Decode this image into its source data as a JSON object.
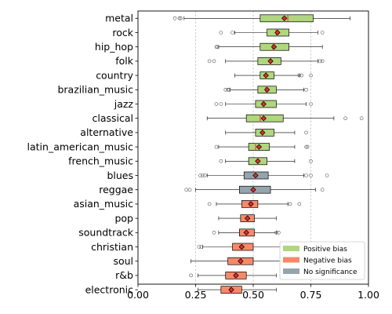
{
  "chart_data": {
    "type": "boxplot",
    "orientation": "horizontal",
    "title": "",
    "xlabel": "",
    "ylabel": "",
    "xlim": [
      0,
      1
    ],
    "x_ticks": [
      "0.00",
      "0.25",
      "0.50",
      "0.75",
      "1.00"
    ],
    "x_tick_values": [
      0,
      0.25,
      0.5,
      0.75,
      1.0
    ],
    "reference_lines": [
      0.25,
      0.5,
      0.75
    ],
    "grid": false,
    "legend_position": "lower-right",
    "colors": {
      "positive": "#b0d67e",
      "negative": "#f58a6a",
      "none": "#95a5ad",
      "median": "#e8453c",
      "mean_marker": "#d93030"
    },
    "legend": [
      {
        "label": "Positive bias",
        "group": "positive"
      },
      {
        "label": "Negative bias",
        "group": "negative"
      },
      {
        "label": "No significance",
        "group": "none"
      }
    ],
    "categories": [
      {
        "label": "metal",
        "group": "positive",
        "whisker_low": 0.2,
        "q1": 0.53,
        "median": 0.65,
        "q3": 0.76,
        "whisker_high": 0.92,
        "mean": 0.635,
        "outliers": [
          0.16,
          0.18,
          0.185
        ]
      },
      {
        "label": "rock",
        "group": "positive",
        "whisker_low": 0.42,
        "q1": 0.56,
        "median": 0.6,
        "q3": 0.655,
        "whisker_high": 0.78,
        "mean": 0.605,
        "outliers": [
          0.36,
          0.41,
          0.8
        ]
      },
      {
        "label": "hip_hop",
        "group": "positive",
        "whisker_low": 0.35,
        "q1": 0.53,
        "median": 0.585,
        "q3": 0.655,
        "whisker_high": 0.8,
        "mean": 0.59,
        "outliers": [
          0.34,
          0.345
        ]
      },
      {
        "label": "folk",
        "group": "positive",
        "whisker_low": 0.38,
        "q1": 0.52,
        "median": 0.575,
        "q3": 0.62,
        "whisker_high": 0.78,
        "mean": 0.575,
        "outliers": [
          0.31,
          0.33,
          0.79,
          0.8
        ]
      },
      {
        "label": "country",
        "group": "positive",
        "whisker_low": 0.42,
        "q1": 0.53,
        "median": 0.555,
        "q3": 0.59,
        "whisker_high": 0.7,
        "mean": 0.555,
        "outliers": [
          0.7,
          0.71,
          0.75
        ]
      },
      {
        "label": "brazilian_music",
        "group": "positive",
        "whisker_low": 0.4,
        "q1": 0.52,
        "median": 0.555,
        "q3": 0.6,
        "whisker_high": 0.72,
        "mean": 0.56,
        "outliers": [
          0.38,
          0.39,
          0.395,
          0.73
        ]
      },
      {
        "label": "jazz",
        "group": "positive",
        "whisker_low": 0.38,
        "q1": 0.51,
        "median": 0.545,
        "q3": 0.6,
        "whisker_high": 0.73,
        "mean": 0.545,
        "outliers": [
          0.34,
          0.36,
          0.75
        ]
      },
      {
        "label": "classical",
        "group": "positive",
        "whisker_low": 0.3,
        "q1": 0.47,
        "median": 0.53,
        "q3": 0.63,
        "whisker_high": 0.85,
        "mean": 0.545,
        "outliers": [
          0.9,
          0.97
        ]
      },
      {
        "label": "alternative",
        "group": "positive",
        "whisker_low": 0.38,
        "q1": 0.51,
        "median": 0.54,
        "q3": 0.59,
        "whisker_high": 0.68,
        "mean": 0.54,
        "outliers": [
          0.73
        ]
      },
      {
        "label": "latin_american_music",
        "group": "positive",
        "whisker_low": 0.35,
        "q1": 0.48,
        "median": 0.51,
        "q3": 0.57,
        "whisker_high": 0.68,
        "mean": 0.525,
        "outliers": [
          0.34,
          0.73,
          0.735
        ]
      },
      {
        "label": "french_music",
        "group": "positive",
        "whisker_low": 0.38,
        "q1": 0.48,
        "median": 0.52,
        "q3": 0.56,
        "whisker_high": 0.68,
        "mean": 0.52,
        "outliers": [
          0.36,
          0.75
        ]
      },
      {
        "label": "blues",
        "group": "none",
        "whisker_low": 0.3,
        "q1": 0.46,
        "median": 0.51,
        "q3": 0.565,
        "whisker_high": 0.72,
        "mean": 0.51,
        "outliers": [
          0.27,
          0.28,
          0.29,
          0.73,
          0.75,
          0.82
        ]
      },
      {
        "label": "reggae",
        "group": "none",
        "whisker_low": 0.25,
        "q1": 0.44,
        "median": 0.5,
        "q3": 0.575,
        "whisker_high": 0.77,
        "mean": 0.5,
        "outliers": [
          0.21,
          0.225,
          0.8
        ]
      },
      {
        "label": "asian_music",
        "group": "negative",
        "whisker_low": 0.34,
        "q1": 0.45,
        "median": 0.485,
        "q3": 0.52,
        "whisker_high": 0.65,
        "mean": 0.49,
        "outliers": [
          0.31,
          0.66,
          0.7
        ]
      },
      {
        "label": "pop",
        "group": "negative",
        "whisker_low": 0.35,
        "q1": 0.445,
        "median": 0.475,
        "q3": 0.505,
        "whisker_high": 0.6,
        "mean": 0.475,
        "outliers": []
      },
      {
        "label": "soundtrack",
        "group": "negative",
        "whisker_low": 0.35,
        "q1": 0.44,
        "median": 0.47,
        "q3": 0.505,
        "whisker_high": 0.6,
        "mean": 0.47,
        "outliers": [
          0.33,
          0.6,
          0.61
        ]
      },
      {
        "label": "christian",
        "group": "negative",
        "whisker_low": 0.28,
        "q1": 0.41,
        "median": 0.45,
        "q3": 0.5,
        "whisker_high": 0.64,
        "mean": 0.45,
        "outliers": [
          0.265,
          0.275
        ]
      },
      {
        "label": "soul",
        "group": "negative",
        "whisker_low": 0.23,
        "q1": 0.39,
        "median": 0.45,
        "q3": 0.5,
        "whisker_high": 0.66,
        "mean": 0.445,
        "outliers": []
      },
      {
        "label": "r&b",
        "group": "negative",
        "whisker_low": 0.26,
        "q1": 0.38,
        "median": 0.42,
        "q3": 0.47,
        "whisker_high": 0.6,
        "mean": 0.425,
        "outliers": [
          0.23
        ]
      },
      {
        "label": "electronic",
        "group": "negative",
        "whisker_low": 0.26,
        "q1": 0.36,
        "median": 0.4,
        "q3": 0.45,
        "whisker_high": 0.6,
        "mean": 0.405,
        "outliers": []
      }
    ]
  }
}
